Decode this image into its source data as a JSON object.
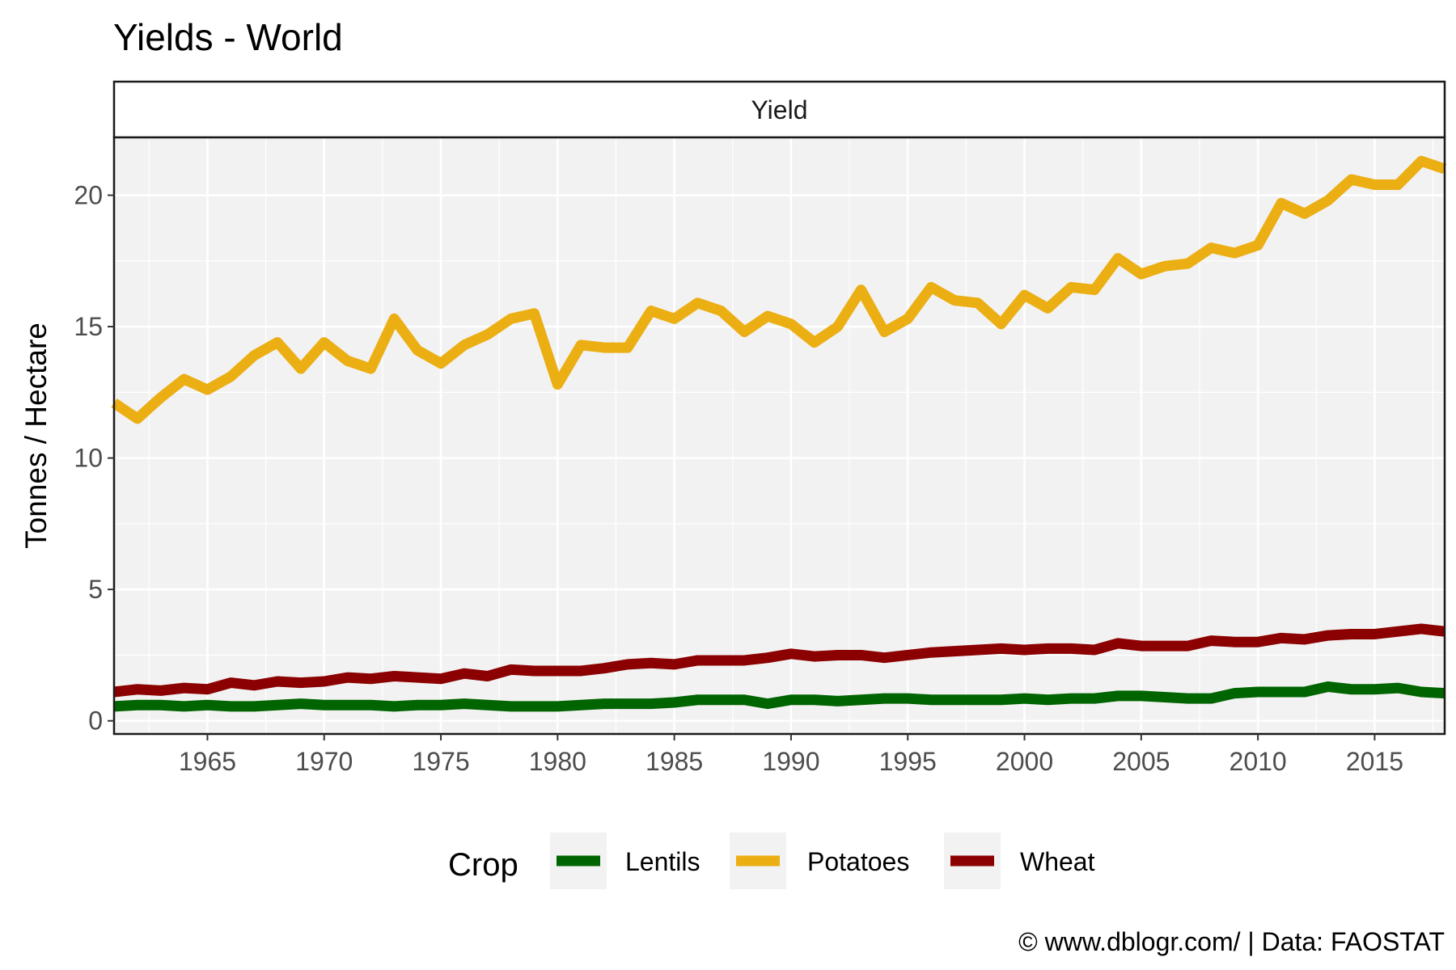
{
  "chart_data": {
    "type": "line",
    "title": "Yields - World",
    "facet_label": "Yield",
    "ylabel": "Tonnes / Hectare",
    "xlabel": "",
    "xlim": [
      1961,
      2018
    ],
    "ylim": [
      -0.5,
      22.2
    ],
    "xticks": [
      1965,
      1970,
      1975,
      1980,
      1985,
      1990,
      1995,
      2000,
      2005,
      2010,
      2015
    ],
    "yticks": [
      0,
      5,
      10,
      15,
      20
    ],
    "grid": true,
    "legend_title": "Crop",
    "legend_position": "bottom",
    "caption": "© www.dblogr.com/  |  Data: FAOSTAT",
    "x": [
      1961,
      1962,
      1963,
      1964,
      1965,
      1966,
      1967,
      1968,
      1969,
      1970,
      1971,
      1972,
      1973,
      1974,
      1975,
      1976,
      1977,
      1978,
      1979,
      1980,
      1981,
      1982,
      1983,
      1984,
      1985,
      1986,
      1987,
      1988,
      1989,
      1990,
      1991,
      1992,
      1993,
      1994,
      1995,
      1996,
      1997,
      1998,
      1999,
      2000,
      2001,
      2002,
      2003,
      2004,
      2005,
      2006,
      2007,
      2008,
      2009,
      2010,
      2011,
      2012,
      2013,
      2014,
      2015,
      2016,
      2017,
      2018
    ],
    "series": [
      {
        "name": "Lentils",
        "color": "#006400",
        "values": [
          0.55,
          0.6,
          0.6,
          0.55,
          0.6,
          0.55,
          0.55,
          0.6,
          0.65,
          0.6,
          0.6,
          0.6,
          0.55,
          0.6,
          0.6,
          0.65,
          0.6,
          0.55,
          0.55,
          0.55,
          0.6,
          0.65,
          0.65,
          0.65,
          0.7,
          0.8,
          0.8,
          0.8,
          0.65,
          0.8,
          0.8,
          0.75,
          0.8,
          0.85,
          0.85,
          0.8,
          0.8,
          0.8,
          0.8,
          0.85,
          0.8,
          0.85,
          0.85,
          0.95,
          0.95,
          0.9,
          0.85,
          0.85,
          1.05,
          1.1,
          1.1,
          1.1,
          1.3,
          1.2,
          1.2,
          1.25,
          1.1,
          1.05
        ]
      },
      {
        "name": "Potatoes",
        "color": "#EBAF14",
        "values": [
          12.1,
          11.5,
          12.3,
          13.0,
          12.6,
          13.1,
          13.9,
          14.4,
          13.4,
          14.4,
          13.7,
          13.4,
          15.3,
          14.1,
          13.6,
          14.3,
          14.7,
          15.3,
          15.5,
          12.8,
          14.3,
          14.2,
          14.2,
          15.6,
          15.3,
          15.9,
          15.6,
          14.8,
          15.4,
          15.1,
          14.4,
          15.0,
          16.4,
          14.8,
          15.3,
          16.5,
          16.0,
          15.9,
          15.1,
          16.2,
          15.7,
          16.5,
          16.4,
          17.6,
          17.0,
          17.3,
          17.4,
          18.0,
          17.8,
          18.1,
          19.7,
          19.3,
          19.8,
          20.6,
          20.4,
          20.4,
          21.3,
          21.0
        ]
      },
      {
        "name": "Wheat",
        "color": "#8B0000",
        "values": [
          1.1,
          1.2,
          1.15,
          1.25,
          1.2,
          1.45,
          1.35,
          1.5,
          1.45,
          1.5,
          1.65,
          1.6,
          1.7,
          1.65,
          1.6,
          1.8,
          1.7,
          1.95,
          1.9,
          1.9,
          1.9,
          2.0,
          2.15,
          2.2,
          2.15,
          2.3,
          2.3,
          2.3,
          2.4,
          2.55,
          2.45,
          2.5,
          2.5,
          2.4,
          2.5,
          2.6,
          2.65,
          2.7,
          2.75,
          2.7,
          2.75,
          2.75,
          2.7,
          2.95,
          2.85,
          2.85,
          2.85,
          3.05,
          3.0,
          3.0,
          3.15,
          3.1,
          3.25,
          3.3,
          3.3,
          3.4,
          3.5,
          3.4
        ]
      }
    ]
  }
}
